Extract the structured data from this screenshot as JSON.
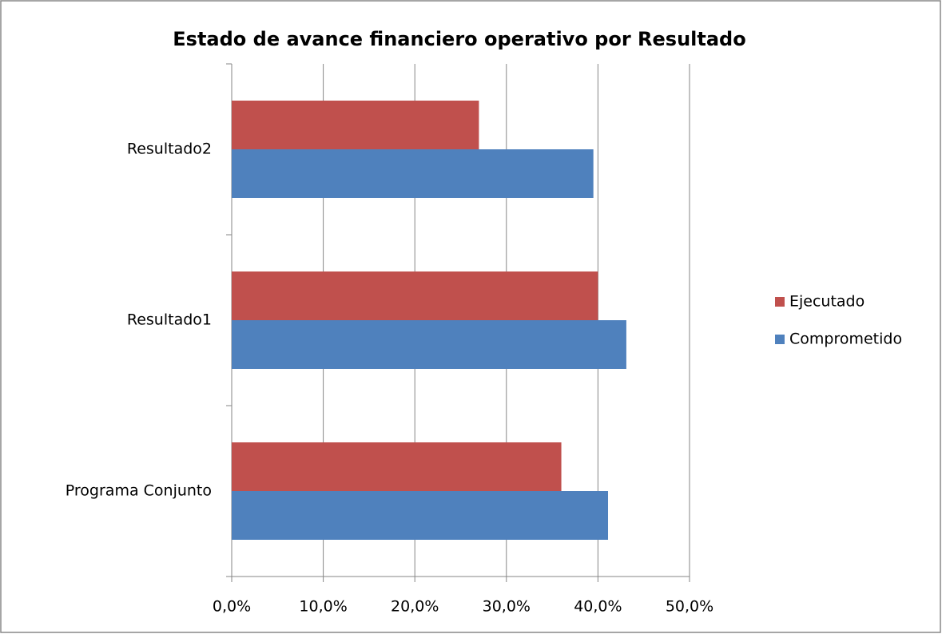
{
  "chart_data": {
    "type": "hbar",
    "title": "Estado de avance financiero operativo por Resultado",
    "categories": [
      "Programa Conjunto",
      "Resultado1",
      "Resultado2"
    ],
    "series": [
      {
        "name": "Comprometido",
        "color": "#4f81bd",
        "values": [
          41.1,
          43.1,
          39.5
        ]
      },
      {
        "name": "Ejecutado",
        "color": "#c0504d",
        "values": [
          36.0,
          40.0,
          27.0
        ]
      }
    ],
    "xlim": [
      0,
      50
    ],
    "xticks": [
      {
        "value": 0,
        "label": "0,0%"
      },
      {
        "value": 10,
        "label": "10,0%"
      },
      {
        "value": 20,
        "label": "20,0%"
      },
      {
        "value": 30,
        "label": "30,0%"
      },
      {
        "value": 40,
        "label": "40,0%"
      },
      {
        "value": 50,
        "label": "50,0%"
      }
    ],
    "grid": true,
    "legend": "right"
  }
}
